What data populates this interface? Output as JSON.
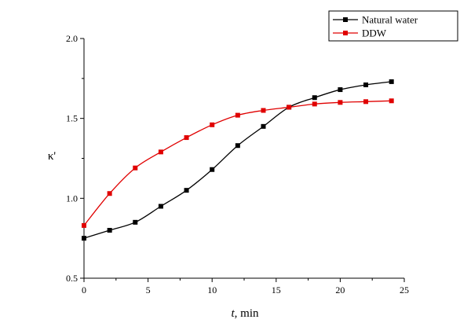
{
  "chart_data": {
    "type": "line",
    "xlabel_var": "t",
    "xlabel_rest": ", min",
    "ylabel": "κ'",
    "xlim": [
      0,
      25
    ],
    "ylim": [
      0.5,
      2.0
    ],
    "xticks": [
      0,
      5,
      10,
      15,
      20,
      25
    ],
    "yticks": [
      0.5,
      1.0,
      1.5,
      2.0
    ],
    "xtick_labels": [
      "0",
      "5",
      "10",
      "15",
      "20",
      "25"
    ],
    "ytick_labels": [
      "0.5",
      "1.0",
      "1.5",
      "2.0"
    ],
    "grid": false,
    "legend_position": "top-right",
    "series": [
      {
        "name": "Natural water",
        "color": "#000000",
        "marker": "square",
        "x": [
          0,
          2,
          4,
          6,
          8,
          10,
          12,
          14,
          16,
          18,
          20,
          22,
          24
        ],
        "y": [
          0.75,
          0.8,
          0.85,
          0.95,
          1.05,
          1.18,
          1.33,
          1.45,
          1.57,
          1.63,
          1.68,
          1.71,
          1.73
        ]
      },
      {
        "name": "DDW",
        "color": "#e00000",
        "marker": "square",
        "x": [
          0,
          2,
          4,
          6,
          8,
          10,
          12,
          14,
          16,
          18,
          20,
          22,
          24
        ],
        "y": [
          0.83,
          1.03,
          1.19,
          1.29,
          1.38,
          1.46,
          1.52,
          1.55,
          1.57,
          1.59,
          1.6,
          1.605,
          1.61
        ]
      }
    ]
  }
}
